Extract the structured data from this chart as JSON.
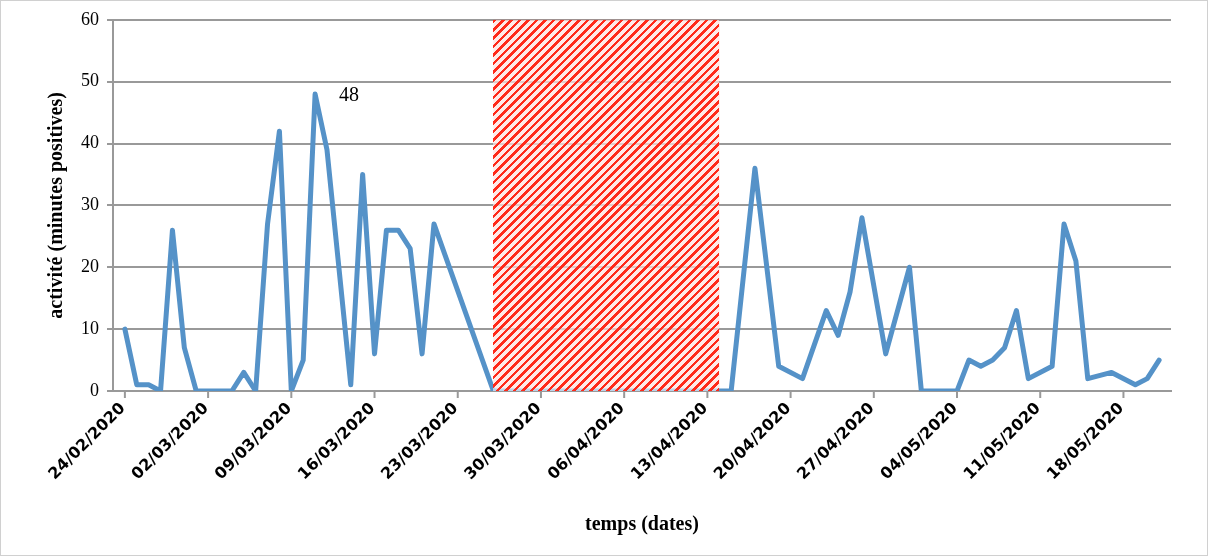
{
  "chart_data": {
    "type": "line",
    "xlabel": "temps (dates)",
    "ylabel": "activité (minutes positives)",
    "series": [
      {
        "color": "#5592c8",
        "x": [
          "2020-02-24",
          "2020-02-25",
          "2020-02-26",
          "2020-02-27",
          "2020-02-28",
          "2020-02-29",
          "2020-03-01",
          "2020-03-04",
          "2020-03-05",
          "2020-03-06",
          "2020-03-07",
          "2020-03-08",
          "2020-03-09",
          "2020-03-10",
          "2020-03-11",
          "2020-03-12",
          "2020-03-14",
          "2020-03-15",
          "2020-03-16",
          "2020-03-17",
          "2020-03-18",
          "2020-03-19",
          "2020-03-20",
          "2020-03-21",
          "2020-03-26",
          "2020-04-14",
          "2020-04-15",
          "2020-04-17",
          "2020-04-19",
          "2020-04-21",
          "2020-04-23",
          "2020-04-24",
          "2020-04-25",
          "2020-04-26",
          "2020-04-28",
          "2020-04-30",
          "2020-05-01",
          "2020-05-04",
          "2020-05-05",
          "2020-05-06",
          "2020-05-07",
          "2020-05-08",
          "2020-05-09",
          "2020-05-10",
          "2020-05-12",
          "2020-05-13",
          "2020-05-14",
          "2020-05-15",
          "2020-05-17",
          "2020-05-19",
          "2020-05-20",
          "2020-05-21"
        ],
        "values": [
          10,
          1,
          1,
          0,
          26,
          7,
          0,
          0,
          3,
          0,
          27,
          42,
          0,
          5,
          48,
          39,
          1,
          35,
          6,
          26,
          26,
          23,
          6,
          27,
          0,
          0,
          0,
          36,
          4,
          2,
          13,
          9,
          16,
          28,
          6,
          20,
          0,
          0,
          5,
          4,
          5,
          7,
          13,
          2,
          4,
          27,
          21,
          2,
          3,
          1,
          2,
          5
        ]
      }
    ],
    "xlim": [
      "2020-02-23",
      "2020-05-22"
    ],
    "xticks": [
      {
        "value": "2020-02-24",
        "label": "24/02/2020"
      },
      {
        "value": "2020-03-02",
        "label": "02/03/2020"
      },
      {
        "value": "2020-03-09",
        "label": "09/03/2020"
      },
      {
        "value": "2020-03-16",
        "label": "16/03/2020"
      },
      {
        "value": "2020-03-23",
        "label": "23/03/2020"
      },
      {
        "value": "2020-03-30",
        "label": "30/03/2020"
      },
      {
        "value": "2020-04-06",
        "label": "06/04/2020"
      },
      {
        "value": "2020-04-13",
        "label": "13/04/2020"
      },
      {
        "value": "2020-04-20",
        "label": "20/04/2020"
      },
      {
        "value": "2020-04-27",
        "label": "27/04/2020"
      },
      {
        "value": "2020-05-04",
        "label": "04/05/2020"
      },
      {
        "value": "2020-05-11",
        "label": "11/05/2020"
      },
      {
        "value": "2020-05-18",
        "label": "18/05/2020"
      }
    ],
    "ylim": [
      0,
      60
    ],
    "yticks": [
      0,
      10,
      20,
      30,
      40,
      50,
      60
    ],
    "grid": "y",
    "marker": "none",
    "line_style": "solid",
    "bands": [
      {
        "axis": "x",
        "from": "2020-03-26",
        "to": "2020-04-14",
        "color": "#ff2a1a"
      }
    ],
    "annotations": [
      {
        "text": "48",
        "x": "2020-03-11",
        "y": 48
      }
    ]
  }
}
